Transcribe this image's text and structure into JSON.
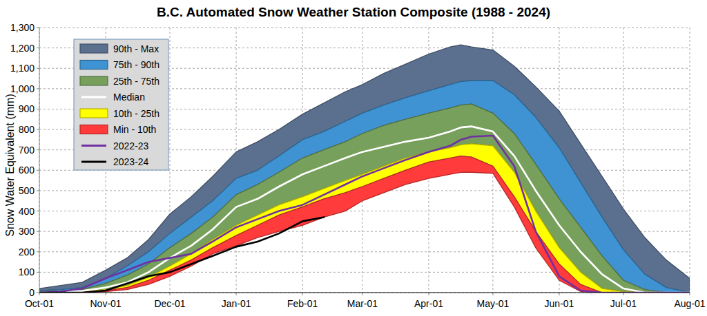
{
  "chart_data": {
    "type": "area",
    "title": "B.C. Automated Snow Weather Station Composite (1988 - 2024)",
    "ylabel": "Snow Water Equivalent (mm)",
    "x": [
      0,
      10,
      20,
      31,
      41,
      51,
      61,
      71,
      81,
      92,
      102,
      112,
      123,
      133,
      143,
      151,
      161,
      171,
      182,
      192,
      197,
      202,
      212,
      222,
      232,
      243,
      253,
      263,
      273,
      283,
      293,
      304
    ],
    "xlim": [
      0,
      304
    ],
    "xticks": [
      {
        "value": 0,
        "label": "Oct-01"
      },
      {
        "value": 31,
        "label": "Nov-01"
      },
      {
        "value": 61,
        "label": "Dec-01"
      },
      {
        "value": 92,
        "label": "Jan-01"
      },
      {
        "value": 123,
        "label": "Feb-01"
      },
      {
        "value": 151,
        "label": "Mar-01"
      },
      {
        "value": 182,
        "label": "Apr-01"
      },
      {
        "value": 212,
        "label": "May-01"
      },
      {
        "value": 243,
        "label": "Jun-01"
      },
      {
        "value": 273,
        "label": "Jul-01"
      },
      {
        "value": 304,
        "label": "Aug-01"
      }
    ],
    "ylim": [
      0,
      1300
    ],
    "yticks": [
      0,
      100,
      200,
      300,
      400,
      500,
      600,
      700,
      800,
      900,
      {
        "value": 1000,
        "label": "1,000"
      },
      {
        "value": 1100,
        "label": "1,100"
      },
      {
        "value": 1200,
        "label": "1,200"
      },
      {
        "value": 1300,
        "label": "1,300"
      }
    ],
    "grid": true,
    "legend": "upper left",
    "series": [
      {
        "name": "90th - Max",
        "type": "band",
        "color": "#5b6f8f",
        "low": [
          10,
          15,
          25,
          70,
          130,
          200,
          290,
          370,
          450,
          560,
          600,
          670,
          750,
          790,
          840,
          880,
          920,
          955,
          990,
          1020,
          1035,
          1040,
          1040,
          970,
          860,
          710,
          540,
          370,
          210,
          90,
          25,
          0
        ],
        "values": [
          20,
          35,
          50,
          110,
          170,
          260,
          385,
          470,
          570,
          690,
          740,
          800,
          875,
          930,
          985,
          1020,
          1075,
          1120,
          1170,
          1205,
          1215,
          1205,
          1190,
          1110,
          1010,
          890,
          730,
          570,
          410,
          270,
          160,
          70
        ]
      },
      {
        "name": "75th - 90th",
        "type": "band",
        "color": "#3f93d2",
        "low": [
          5,
          8,
          15,
          45,
          85,
          140,
          220,
          290,
          370,
          480,
          530,
          590,
          660,
          700,
          740,
          780,
          820,
          850,
          880,
          905,
          920,
          925,
          880,
          780,
          630,
          460,
          320,
          180,
          60,
          15,
          0,
          0
        ],
        "values": [
          10,
          15,
          25,
          70,
          130,
          200,
          290,
          370,
          450,
          560,
          600,
          670,
          750,
          790,
          840,
          880,
          920,
          955,
          990,
          1020,
          1035,
          1040,
          1040,
          970,
          860,
          710,
          540,
          370,
          210,
          90,
          25,
          0
        ]
      },
      {
        "name": "25th - 75th",
        "type": "band",
        "color": "#76a05b",
        "low": [
          0,
          2,
          5,
          15,
          35,
          75,
          130,
          190,
          260,
          330,
          380,
          430,
          470,
          510,
          550,
          580,
          620,
          660,
          690,
          710,
          725,
          730,
          720,
          590,
          400,
          220,
          100,
          20,
          5,
          0,
          0,
          0
        ],
        "values": [
          5,
          8,
          15,
          45,
          85,
          140,
          220,
          290,
          370,
          480,
          530,
          590,
          660,
          700,
          740,
          780,
          820,
          850,
          880,
          905,
          920,
          925,
          880,
          780,
          630,
          460,
          320,
          180,
          60,
          15,
          0,
          0
        ]
      },
      {
        "name": "Median",
        "type": "line",
        "color": "#ffffff",
        "values": [
          0,
          3,
          8,
          25,
          50,
          100,
          170,
          230,
          310,
          420,
          460,
          520,
          580,
          620,
          660,
          690,
          715,
          740,
          760,
          790,
          810,
          815,
          790,
          670,
          500,
          330,
          200,
          90,
          20,
          0,
          0,
          0
        ]
      },
      {
        "name": "10th - 25th",
        "type": "band",
        "color": "#ffff00",
        "low": [
          0,
          0,
          3,
          10,
          25,
          60,
          110,
          160,
          220,
          280,
          330,
          380,
          420,
          460,
          490,
          520,
          560,
          600,
          640,
          660,
          670,
          665,
          620,
          470,
          300,
          140,
          40,
          0,
          0,
          0,
          0,
          0
        ],
        "values": [
          0,
          2,
          5,
          15,
          35,
          75,
          130,
          190,
          260,
          330,
          380,
          430,
          470,
          510,
          550,
          580,
          620,
          660,
          690,
          710,
          725,
          730,
          720,
          590,
          400,
          220,
          100,
          20,
          5,
          0,
          0,
          0
        ]
      },
      {
        "name": "Min - 10th",
        "type": "band",
        "color": "#ff3b3b",
        "low": [
          0,
          0,
          0,
          5,
          15,
          40,
          80,
          130,
          190,
          230,
          270,
          300,
          330,
          370,
          400,
          450,
          490,
          530,
          560,
          580,
          590,
          590,
          585,
          420,
          220,
          60,
          5,
          0,
          0,
          0,
          0,
          0
        ],
        "values": [
          0,
          0,
          3,
          10,
          25,
          60,
          110,
          160,
          220,
          280,
          330,
          380,
          420,
          460,
          490,
          520,
          560,
          600,
          640,
          660,
          670,
          665,
          620,
          470,
          300,
          140,
          40,
          0,
          0,
          0,
          0,
          0
        ]
      },
      {
        "name": "2022-23",
        "type": "line",
        "color": "#7030a0",
        "values": [
          0,
          5,
          20,
          70,
          110,
          150,
          170,
          190,
          250,
          320,
          360,
          400,
          430,
          480,
          530,
          570,
          610,
          650,
          690,
          720,
          750,
          765,
          770,
          620,
          300,
          80,
          10,
          0,
          0,
          0,
          0,
          0
        ]
      },
      {
        "name": "2023-24",
        "type": "line",
        "color": "#000000",
        "values": [
          0,
          0,
          0,
          10,
          45,
          80,
          100,
          140,
          180,
          225,
          250,
          290,
          350,
          370,
          null,
          null,
          null,
          null,
          null,
          null,
          null,
          null,
          null,
          null,
          null,
          null,
          null,
          null,
          null,
          null,
          null,
          null
        ]
      }
    ]
  }
}
